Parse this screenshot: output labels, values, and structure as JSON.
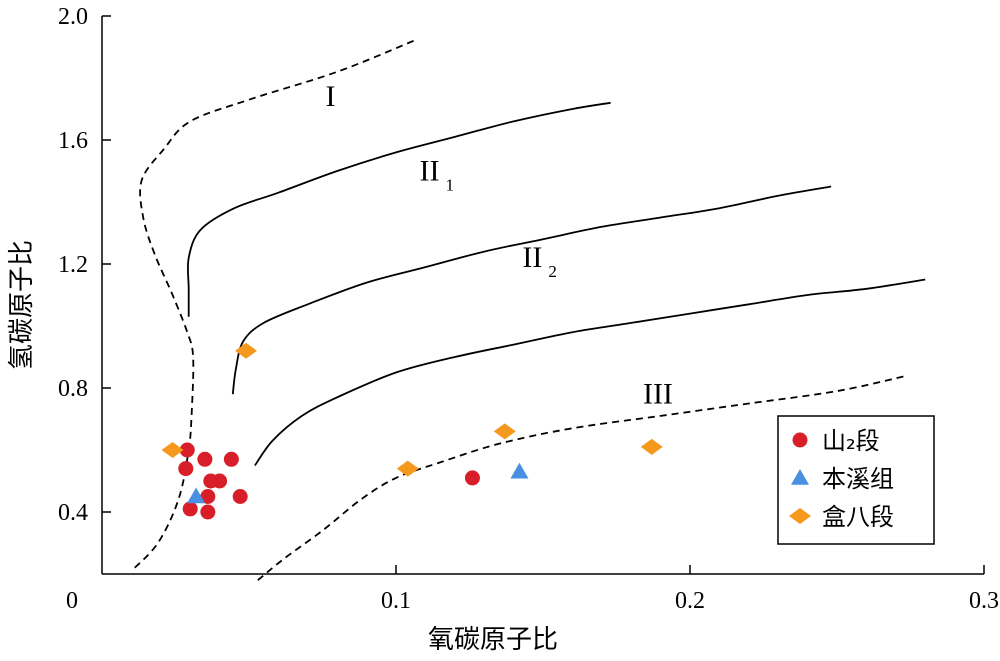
{
  "chart_data": {
    "type": "scatter",
    "xlabel": "氧碳原子比",
    "ylabel": "氢碳原子比",
    "xlim": [
      0,
      0.3
    ],
    "ylim": [
      0.2,
      2.0
    ],
    "x_ticks": [
      "0",
      "0.1",
      "0.2",
      "0.3"
    ],
    "y_ticks": [
      "0.4",
      "0.8",
      "1.2",
      "1.6",
      "2.0"
    ],
    "grid": false,
    "legend_position": "bottom-right",
    "region_labels": [
      {
        "main": "I",
        "sub": "",
        "x": 0.076,
        "y": 1.71
      },
      {
        "main": "II",
        "sub": "1",
        "x": 0.108,
        "y": 1.47
      },
      {
        "main": "II",
        "sub": "2",
        "x": 0.143,
        "y": 1.19
      },
      {
        "main": "III",
        "sub": "",
        "x": 0.184,
        "y": 0.75
      }
    ],
    "boundary_curves": [
      {
        "style": "dashed",
        "points": [
          [
            0.106,
            1.92
          ],
          [
            0.08,
            1.82
          ],
          [
            0.05,
            1.73
          ],
          [
            0.03,
            1.66
          ],
          [
            0.021,
            1.57
          ],
          [
            0.0135,
            1.47
          ],
          [
            0.014,
            1.35
          ],
          [
            0.018,
            1.23
          ],
          [
            0.024,
            1.1
          ],
          [
            0.029,
            0.98
          ],
          [
            0.031,
            0.9
          ],
          [
            0.0305,
            0.72
          ],
          [
            0.0295,
            0.6
          ],
          [
            0.026,
            0.44
          ],
          [
            0.019,
            0.3
          ],
          [
            0.01,
            0.21
          ]
        ]
      },
      {
        "style": "solid",
        "points": [
          [
            0.0295,
            1.03
          ],
          [
            0.0295,
            1.12
          ],
          [
            0.0295,
            1.22
          ],
          [
            0.0335,
            1.31
          ],
          [
            0.045,
            1.38
          ],
          [
            0.06,
            1.43
          ],
          [
            0.08,
            1.5
          ],
          [
            0.1,
            1.56
          ],
          [
            0.12,
            1.61
          ],
          [
            0.14,
            1.66
          ],
          [
            0.16,
            1.7
          ],
          [
            0.173,
            1.72
          ]
        ]
      },
      {
        "style": "solid",
        "points": [
          [
            0.0445,
            0.78
          ],
          [
            0.0455,
            0.86
          ],
          [
            0.048,
            0.95
          ],
          [
            0.055,
            1.01
          ],
          [
            0.07,
            1.07
          ],
          [
            0.09,
            1.14
          ],
          [
            0.11,
            1.19
          ],
          [
            0.13,
            1.24
          ],
          [
            0.15,
            1.28
          ],
          [
            0.17,
            1.32
          ],
          [
            0.19,
            1.35
          ],
          [
            0.21,
            1.38
          ],
          [
            0.23,
            1.42
          ],
          [
            0.248,
            1.45
          ]
        ]
      },
      {
        "style": "solid",
        "points": [
          [
            0.052,
            0.55
          ],
          [
            0.058,
            0.63
          ],
          [
            0.068,
            0.71
          ],
          [
            0.08,
            0.77
          ],
          [
            0.1,
            0.85
          ],
          [
            0.12,
            0.9
          ],
          [
            0.14,
            0.94
          ],
          [
            0.16,
            0.98
          ],
          [
            0.18,
            1.01
          ],
          [
            0.2,
            1.04
          ],
          [
            0.22,
            1.07
          ],
          [
            0.24,
            1.1
          ],
          [
            0.26,
            1.12
          ],
          [
            0.28,
            1.15
          ]
        ]
      },
      {
        "style": "dashed",
        "points": [
          [
            0.053,
            0.18
          ],
          [
            0.062,
            0.25
          ],
          [
            0.075,
            0.34
          ],
          [
            0.088,
            0.44
          ],
          [
            0.1,
            0.51
          ],
          [
            0.115,
            0.56
          ],
          [
            0.135,
            0.62
          ],
          [
            0.16,
            0.67
          ],
          [
            0.19,
            0.71
          ],
          [
            0.22,
            0.75
          ],
          [
            0.25,
            0.79
          ],
          [
            0.274,
            0.84
          ]
        ]
      }
    ],
    "series": [
      {
        "name": "山₂段",
        "marker": "circle",
        "color": "#d81e28",
        "points": [
          [
            0.029,
            0.6
          ],
          [
            0.0285,
            0.54
          ],
          [
            0.03,
            0.41
          ],
          [
            0.035,
            0.57
          ],
          [
            0.036,
            0.45
          ],
          [
            0.036,
            0.4
          ],
          [
            0.037,
            0.5
          ],
          [
            0.04,
            0.5
          ],
          [
            0.044,
            0.57
          ],
          [
            0.047,
            0.45
          ],
          [
            0.126,
            0.51
          ]
        ]
      },
      {
        "name": "本溪组",
        "marker": "triangle",
        "color": "#4a90e2",
        "points": [
          [
            0.032,
            0.45
          ],
          [
            0.142,
            0.53
          ]
        ]
      },
      {
        "name": "盒八段",
        "marker": "diamond",
        "color": "#f4991d",
        "points": [
          [
            0.024,
            0.6
          ],
          [
            0.049,
            0.92
          ],
          [
            0.104,
            0.54
          ],
          [
            0.137,
            0.66
          ],
          [
            0.187,
            0.61
          ]
        ]
      }
    ]
  }
}
